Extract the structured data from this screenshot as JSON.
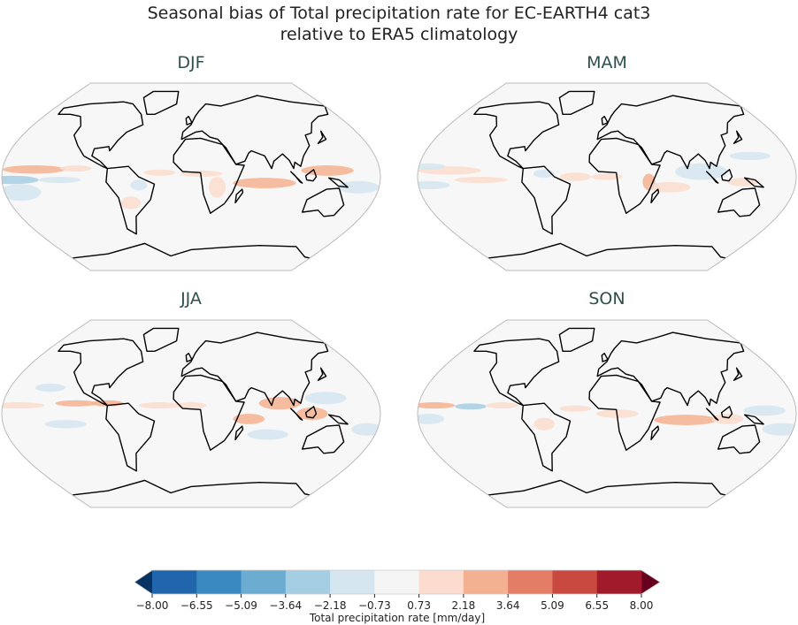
{
  "title": {
    "line1": "Seasonal bias of Total precipitation rate for EC-EARTH4 cat3",
    "line2": "relative to ERA5 climatology"
  },
  "map_style": {
    "ocean_fill": "#f7f7f7",
    "border": "#bbbbbb",
    "coastline": "#000000",
    "projection": "robinson",
    "central_longitude": 0
  },
  "panels": [
    {
      "season": "DJF",
      "bias_fields": [
        [
          -150,
          7,
          30,
          4,
          3
        ],
        [
          -110,
          8,
          15,
          3,
          2
        ],
        [
          -170,
          -3,
          25,
          4,
          -3
        ],
        [
          -125,
          -3,
          20,
          3,
          -2
        ],
        [
          -165,
          -15,
          20,
          8,
          -1.5
        ],
        [
          -30,
          4,
          15,
          3,
          2
        ],
        [
          10,
          3,
          20,
          3,
          2
        ],
        [
          -50,
          -8,
          8,
          5,
          -1.5
        ],
        [
          70,
          -6,
          30,
          5,
          2.5
        ],
        [
          130,
          6,
          25,
          5,
          3
        ],
        [
          160,
          -10,
          20,
          6,
          -1.5
        ],
        [
          -60,
          -25,
          10,
          6,
          1
        ],
        [
          25,
          -10,
          8,
          10,
          1.5
        ]
      ]
    },
    {
      "season": "MAM",
      "bias_fields": [
        [
          -150,
          6,
          30,
          4,
          1.5
        ],
        [
          -120,
          -3,
          25,
          3,
          2
        ],
        [
          -170,
          -8,
          20,
          4,
          -2
        ],
        [
          -30,
          0,
          15,
          4,
          2
        ],
        [
          0,
          0,
          15,
          3,
          1.5
        ],
        [
          -60,
          3,
          10,
          4,
          -1.5
        ],
        [
          40,
          -5,
          6,
          8,
          3
        ],
        [
          90,
          5,
          25,
          8,
          -1.5
        ],
        [
          140,
          20,
          20,
          4,
          -1.2
        ],
        [
          130,
          -5,
          15,
          4,
          1.5
        ],
        [
          -170,
          10,
          15,
          3,
          -1
        ],
        [
          60,
          -10,
          20,
          5,
          1
        ]
      ]
    },
    {
      "season": "JJA",
      "bias_fields": [
        [
          -165,
          8,
          25,
          3,
          2
        ],
        [
          -110,
          10,
          20,
          3,
          2.5
        ],
        [
          -80,
          10,
          15,
          3,
          3
        ],
        [
          -30,
          8,
          20,
          3,
          2
        ],
        [
          0,
          8,
          15,
          3,
          1.5
        ],
        [
          55,
          -5,
          15,
          5,
          2.5
        ],
        [
          85,
          10,
          20,
          6,
          3
        ],
        [
          115,
          0,
          15,
          6,
          2.5
        ],
        [
          130,
          15,
          20,
          6,
          -1.5
        ],
        [
          -120,
          -10,
          20,
          4,
          -1
        ],
        [
          170,
          -15,
          15,
          6,
          -1
        ],
        [
          -140,
          25,
          15,
          4,
          -1
        ],
        [
          75,
          -20,
          20,
          5,
          -1
        ]
      ]
    },
    {
      "season": "SON",
      "bias_fields": [
        [
          -165,
          8,
          20,
          3,
          3
        ],
        [
          -130,
          7,
          15,
          3,
          -2.5
        ],
        [
          -100,
          8,
          15,
          3,
          1.5
        ],
        [
          -30,
          5,
          15,
          3,
          1.5
        ],
        [
          10,
          0,
          20,
          4,
          1
        ],
        [
          75,
          -6,
          30,
          5,
          3.5
        ],
        [
          115,
          -5,
          15,
          5,
          2
        ],
        [
          150,
          3,
          20,
          5,
          -1.5
        ],
        [
          170,
          -15,
          20,
          6,
          -1
        ],
        [
          -60,
          -10,
          10,
          6,
          1
        ],
        [
          -170,
          -5,
          15,
          5,
          -1.5
        ]
      ]
    }
  ],
  "colorbar": {
    "label": "Total precipitation rate [mm/day]",
    "extend": "both",
    "ticks": [
      "−8.00",
      "−6.55",
      "−5.09",
      "−3.64",
      "−2.18",
      "−0.73",
      "0.73",
      "2.18",
      "3.64",
      "5.09",
      "6.55",
      "8.00"
    ],
    "levels": [
      -8.0,
      -6.55,
      -5.09,
      -3.64,
      -2.18,
      -0.73,
      0.73,
      2.18,
      3.64,
      5.09,
      6.55,
      8.0
    ],
    "colors": [
      "#2166ac",
      "#3a89c0",
      "#6bacd0",
      "#a6cee3",
      "#d5e6f0",
      "#f5f5f5",
      "#fbdcce",
      "#f4b191",
      "#e37d66",
      "#c9483f",
      "#a11a2c"
    ],
    "under_color": "#063264",
    "over_color": "#67001f"
  }
}
